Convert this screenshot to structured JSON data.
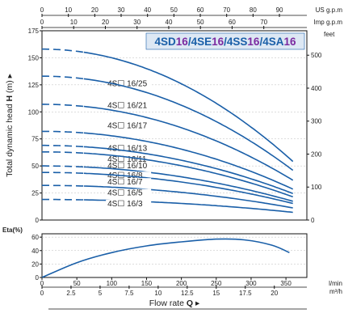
{
  "colors": {
    "curve": "#1a5fa8",
    "title_box_bg": "#dde8f4",
    "title_model": "#1a5fa8",
    "title_highlight": "#7b2aa0",
    "axis": "#111111",
    "grid": "#bbbbbb"
  },
  "title_parts": [
    {
      "text": "4SD",
      "style": "model"
    },
    {
      "text": "16",
      "style": "highlight"
    },
    {
      "text": "/4SE",
      "style": "model"
    },
    {
      "text": "16",
      "style": "highlight"
    },
    {
      "text": "/4SS",
      "style": "model"
    },
    {
      "text": "16",
      "style": "highlight"
    },
    {
      "text": "/4SA",
      "style": "model"
    },
    {
      "text": "16",
      "style": "highlight"
    }
  ],
  "units": {
    "us_gpm": "US g.p.m",
    "imp_gpm": "Imp g.p.m",
    "feet": "feet",
    "eta": "Eta(%)",
    "lmin": "l/min",
    "m3h": "m³/h",
    "head_ylabel": "Total dynamic head",
    "head_ylabel_bold": "H",
    "head_ylabel_unit": "(m) ▸",
    "flow_xlabel": "Flow rate",
    "flow_xlabel_bold": "Q",
    "flow_xlabel_arrow": "▸"
  },
  "chart_data": [
    {
      "type": "line",
      "name": "head",
      "x_unit": "l/min",
      "xlim": [
        0,
        380
      ],
      "ylim": [
        0,
        175
      ],
      "yticks": [
        0,
        25,
        50,
        75,
        100,
        125,
        150,
        175
      ],
      "feet_ticks": [
        0,
        100,
        200,
        300,
        400,
        500
      ],
      "us_gpm_ticks": [
        0,
        10,
        20,
        30,
        40,
        50,
        60,
        70,
        80,
        90
      ],
      "imp_gpm_ticks": [
        0,
        10,
        20,
        30,
        40,
        50,
        60,
        70
      ],
      "grid": true,
      "series": [
        {
          "name": "4S☐ 16/25",
          "label_y": 126,
          "shutoff": 158,
          "end": 53
        },
        {
          "name": "4S☐ 16/21",
          "label_y": 106,
          "shutoff": 133,
          "end": 45
        },
        {
          "name": "4S☐ 16/17",
          "label_y": 87,
          "shutoff": 107,
          "end": 36
        },
        {
          "name": "4S☐ 16/13",
          "label_y": 66,
          "shutoff": 82,
          "end": 28
        },
        {
          "name": "4S☐ 16/11",
          "label_y": 56,
          "shutoff": 69,
          "end": 24
        },
        {
          "name": "4S☐ 16/10",
          "label_y": 50,
          "shutoff": 63,
          "end": 21
        },
        {
          "name": "4S☐ 16/8",
          "label_y": 41,
          "shutoff": 50,
          "end": 17
        },
        {
          "name": "4S☐ 16/7",
          "label_y": 35,
          "shutoff": 44,
          "end": 15
        },
        {
          "name": "4S☐ 16/5",
          "label_y": 25,
          "shutoff": 32,
          "end": 11
        },
        {
          "name": "4S☐ 16/3",
          "label_y": 15,
          "shutoff": 19,
          "end": 7
        }
      ]
    },
    {
      "type": "line",
      "name": "efficiency",
      "ylabel": "Eta(%)",
      "xlim": [
        0,
        380
      ],
      "ylim": [
        0,
        65
      ],
      "yticks": [
        0,
        20,
        40,
        60
      ],
      "lmin_ticks": [
        0,
        50,
        100,
        150,
        200,
        250,
        300,
        350
      ],
      "m3h_ticks": [
        "0",
        "2.5",
        "5",
        "7.5",
        "10",
        "12.5",
        "15",
        "17.5",
        "20"
      ],
      "grid": true,
      "points": [
        [
          0,
          0
        ],
        [
          50,
          22
        ],
        [
          100,
          37
        ],
        [
          150,
          47
        ],
        [
          200,
          53
        ],
        [
          250,
          57
        ],
        [
          290,
          56
        ],
        [
          330,
          48
        ],
        [
          355,
          37
        ]
      ]
    }
  ]
}
